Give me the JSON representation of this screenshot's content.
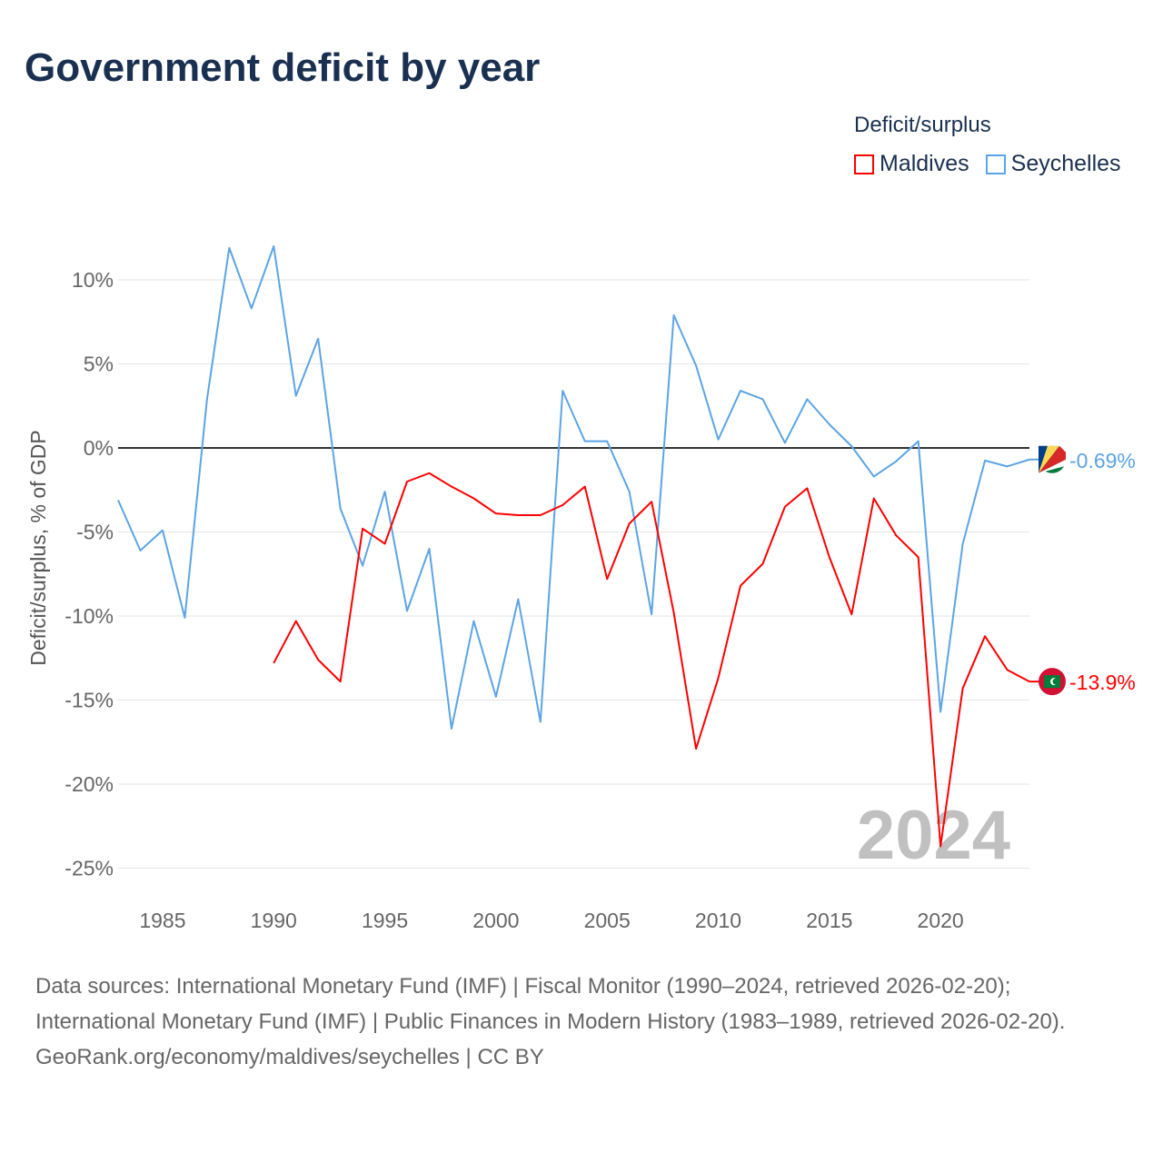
{
  "title": "Government deficit by year",
  "legend": {
    "title": "Deficit/surplus"
  },
  "year_watermark": "2024",
  "footer": {
    "sources": "Data sources: International Monetary Fund (IMF) | Fiscal Monitor (1990–2024, retrieved 2026-02-20); International Monetary Fund (IMF) | Public Finances in Modern History (1983–1989, retrieved 2026-02-20).",
    "credit": "GeoRank.org/economy/maldives/seychelles | CC BY"
  },
  "chart_data": {
    "type": "line",
    "title": "Government deficit by year",
    "ylabel": "Deficit/surplus, % of GDP",
    "xlabel": "",
    "xlim": [
      1983,
      2024
    ],
    "ylim": [
      -26.5,
      14
    ],
    "xticks": [
      1985,
      1990,
      1995,
      2000,
      2005,
      2010,
      2015,
      2020
    ],
    "yticks": [
      10,
      5,
      0,
      -5,
      -10,
      -15,
      -20,
      -25
    ],
    "ytick_labels": [
      "10%",
      "5%",
      "0%",
      "-5%",
      "-10%",
      "-15%",
      "-20%",
      "-25%"
    ],
    "grid": true,
    "legend_position": "top-right",
    "series": [
      {
        "name": "Maldives",
        "color": "#ff0000",
        "end_label": "-13.9%",
        "x": [
          1990,
          1991,
          1992,
          1993,
          1994,
          1995,
          1996,
          1997,
          1998,
          1999,
          2000,
          2001,
          2002,
          2003,
          2004,
          2005,
          2006,
          2007,
          2008,
          2009,
          2010,
          2011,
          2012,
          2013,
          2014,
          2015,
          2016,
          2017,
          2018,
          2019,
          2020,
          2021,
          2022,
          2023,
          2024
        ],
        "values": [
          -12.8,
          -10.3,
          -12.6,
          -13.9,
          -4.8,
          -5.7,
          -2.0,
          -1.5,
          -2.3,
          -3.0,
          -3.9,
          -4.0,
          -4.0,
          -3.4,
          -2.3,
          -7.8,
          -4.5,
          -3.2,
          -9.8,
          -17.9,
          -13.7,
          -8.2,
          -6.9,
          -3.5,
          -2.4,
          -6.5,
          -9.9,
          -3.0,
          -5.2,
          -6.5,
          -23.7,
          -14.3,
          -11.2,
          -13.2,
          -13.9
        ]
      },
      {
        "name": "Seychelles",
        "color": "#5ba4e5",
        "end_label": "-0.69%",
        "x": [
          1983,
          1984,
          1985,
          1986,
          1987,
          1988,
          1989,
          1990,
          1991,
          1992,
          1993,
          1994,
          1995,
          1996,
          1997,
          1998,
          1999,
          2000,
          2001,
          2002,
          2003,
          2004,
          2005,
          2006,
          2007,
          2008,
          2009,
          2010,
          2011,
          2012,
          2013,
          2014,
          2015,
          2016,
          2017,
          2018,
          2019,
          2020,
          2021,
          2022,
          2023,
          2024
        ],
        "values": [
          -3.1,
          -6.1,
          -4.9,
          -10.1,
          2.9,
          11.9,
          8.3,
          12.0,
          3.1,
          6.5,
          -3.6,
          -7.0,
          -2.6,
          -9.7,
          -6.0,
          -16.7,
          -10.3,
          -14.8,
          -9.0,
          -16.3,
          3.4,
          0.4,
          0.4,
          -2.6,
          -9.9,
          7.9,
          4.9,
          0.5,
          3.4,
          2.9,
          0.3,
          2.9,
          1.4,
          0.1,
          -1.7,
          -0.8,
          0.4,
          -15.7,
          -5.7,
          -0.75,
          -1.1,
          -0.69
        ]
      }
    ]
  }
}
